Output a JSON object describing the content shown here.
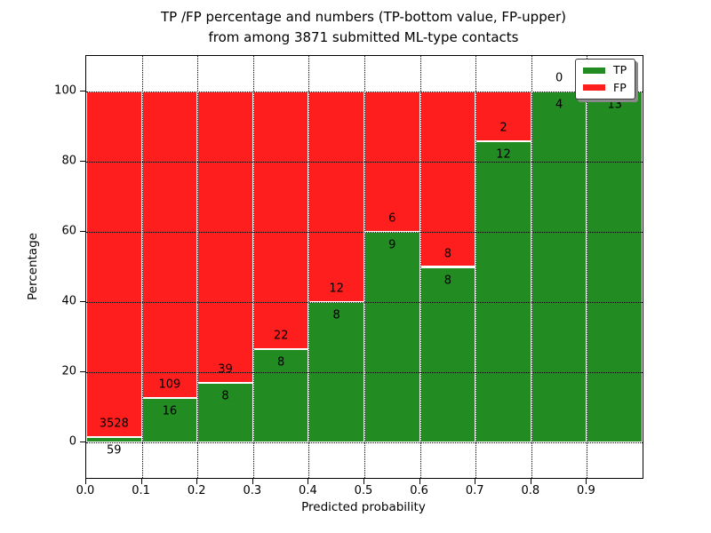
{
  "chart_data": {
    "type": "bar",
    "stacked": true,
    "title_line1": "TP /FP percentage and numbers (TP-bottom value, FP-upper)",
    "title_line2": "from among 3871 submitted ML-type contacts",
    "xlabel": "Predicted probability",
    "ylabel": "Percentage",
    "xlim": [
      0.0,
      1.0
    ],
    "ylim": [
      -10,
      110
    ],
    "xticks": [
      "0.0",
      "0.1",
      "0.2",
      "0.3",
      "0.4",
      "0.5",
      "0.6",
      "0.7",
      "0.8",
      "0.9"
    ],
    "yticks": [
      0,
      20,
      40,
      60,
      80,
      100
    ],
    "grid": "dotted, drawn over bars",
    "total_contacts": 3871,
    "legend": {
      "position": "upper right",
      "entries": [
        {
          "label": "TP",
          "color": "#228B22"
        },
        {
          "label": "FP",
          "color": "#FF1E1E"
        }
      ]
    },
    "series_note": "TP count labeled below segment boundary, FP count above; bar height is TP/(TP+FP) percentage",
    "bins": [
      {
        "x0": 0.0,
        "x1": 0.1,
        "tp": 59,
        "fp": 3528,
        "tp_pct": 1.645
      },
      {
        "x0": 0.1,
        "x1": 0.2,
        "tp": 16,
        "fp": 109,
        "tp_pct": 12.8
      },
      {
        "x0": 0.2,
        "x1": 0.3,
        "tp": 8,
        "fp": 39,
        "tp_pct": 17.02
      },
      {
        "x0": 0.3,
        "x1": 0.4,
        "tp": 8,
        "fp": 22,
        "tp_pct": 26.67
      },
      {
        "x0": 0.4,
        "x1": 0.5,
        "tp": 8,
        "fp": 12,
        "tp_pct": 40.0
      },
      {
        "x0": 0.5,
        "x1": 0.6,
        "tp": 9,
        "fp": 6,
        "tp_pct": 60.0
      },
      {
        "x0": 0.6,
        "x1": 0.7,
        "tp": 8,
        "fp": 8,
        "tp_pct": 50.0
      },
      {
        "x0": 0.7,
        "x1": 0.8,
        "tp": 12,
        "fp": 2,
        "tp_pct": 85.71
      },
      {
        "x0": 0.8,
        "x1": 0.9,
        "tp": 4,
        "fp": 0,
        "tp_pct": 100.0
      },
      {
        "x0": 0.9,
        "x1": 1.0,
        "tp": 13,
        "fp": 0,
        "tp_pct": 100.0
      }
    ],
    "colors": {
      "tp": "#228B22",
      "fp": "#FF1E1E",
      "grid": "#000000",
      "bar_edge": "#FFFFFF"
    }
  }
}
